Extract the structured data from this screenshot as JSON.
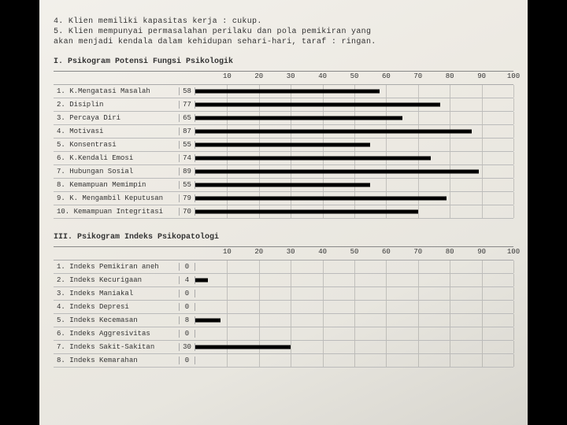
{
  "intro": {
    "line1": "4. Klien memiliki kapasitas kerja :  cukup.",
    "line2": "5. Klien mempunyai permasalahan perilaku dan pola pemikiran yang",
    "line3": "   akan menjadi kendala dalam kehidupan sehari-hari, taraf : ringan."
  },
  "section1": {
    "heading": "I.  Psikogram Potensi Fungsi Psikologik",
    "axis": {
      "min": 0,
      "max": 100,
      "ticks": [
        10,
        20,
        30,
        40,
        50,
        60,
        70,
        80,
        90,
        100
      ]
    },
    "rows": [
      {
        "num": "1.",
        "label": "K.Mengatasi Masalah",
        "value": 58
      },
      {
        "num": "2.",
        "label": "Disiplin",
        "value": 77
      },
      {
        "num": "3.",
        "label": "Percaya Diri",
        "value": 65
      },
      {
        "num": "4.",
        "label": "Motivasi",
        "value": 87
      },
      {
        "num": "5.",
        "label": "Konsentrasi",
        "value": 55
      },
      {
        "num": "6.",
        "label": "K.Kendali Emosi",
        "value": 74
      },
      {
        "num": "7.",
        "label": "Hubungan Sosial",
        "value": 89
      },
      {
        "num": "8.",
        "label": "Kemampuan Memimpin",
        "value": 55
      },
      {
        "num": "9.",
        "label": "K. Mengambil Keputusan",
        "value": 79
      },
      {
        "num": "10.",
        "label": "Kemampuan Integritasi",
        "value": 70
      }
    ],
    "bar_color": "#000000",
    "grid_color": "rgba(120,120,120,0.35)",
    "label_fontsize": 9
  },
  "section2": {
    "heading": "III. Psikogram Indeks Psikopatologi",
    "axis": {
      "min": 0,
      "max": 100,
      "ticks": [
        10,
        20,
        30,
        40,
        50,
        60,
        70,
        80,
        90,
        100
      ]
    },
    "rows": [
      {
        "num": "1.",
        "label": "Indeks Pemikiran aneh",
        "value": 0
      },
      {
        "num": "2.",
        "label": "Indeks Kecurigaan",
        "value": 4
      },
      {
        "num": "3.",
        "label": "Indeks Maniakal",
        "value": 0
      },
      {
        "num": "4.",
        "label": "Indeks Depresi",
        "value": 0
      },
      {
        "num": "5.",
        "label": "Indeks Kecemasan",
        "value": 8
      },
      {
        "num": "6.",
        "label": "Indeks Aggresivitas",
        "value": 0
      },
      {
        "num": "7.",
        "label": "Indeks Sakit-Sakitan",
        "value": 30
      },
      {
        "num": "8.",
        "label": "Indeks Kemarahan",
        "value": 0
      }
    ],
    "bar_color": "#000000",
    "grid_color": "rgba(120,120,120,0.35)",
    "label_fontsize": 9
  },
  "background_color": "#000000",
  "paper_color": "#efece5"
}
